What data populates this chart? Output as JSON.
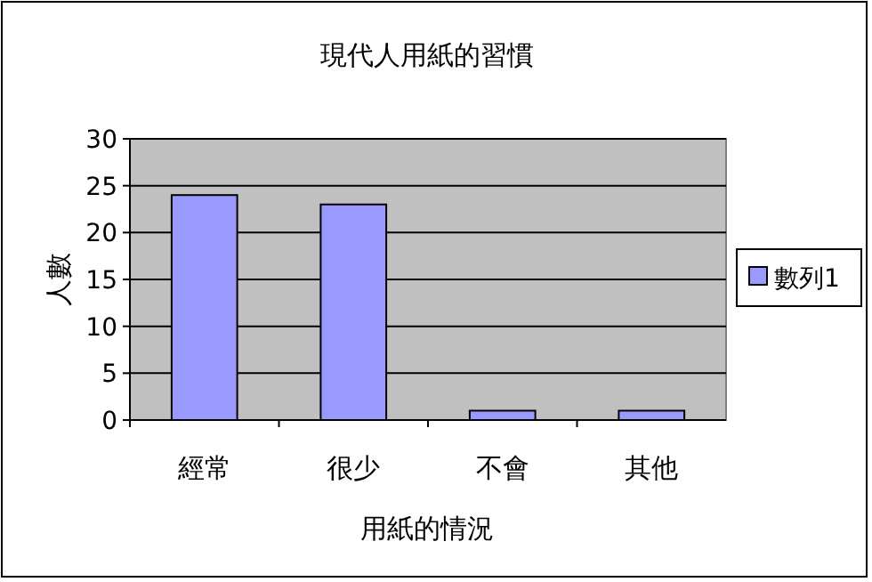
{
  "chart_data": {
    "type": "bar",
    "title": "現代人用紙的習慣",
    "xlabel": "用紙的情況",
    "ylabel": "人數",
    "categories": [
      "經常",
      "很少",
      "不會",
      "其他"
    ],
    "series": [
      {
        "name": "數列1",
        "color": "#9999ff",
        "values": [
          24,
          23,
          1,
          1
        ]
      }
    ],
    "ylim": [
      0,
      30
    ],
    "yticks": [
      0,
      5,
      10,
      15,
      20,
      25,
      30
    ],
    "grid": "y",
    "legend": "right"
  }
}
